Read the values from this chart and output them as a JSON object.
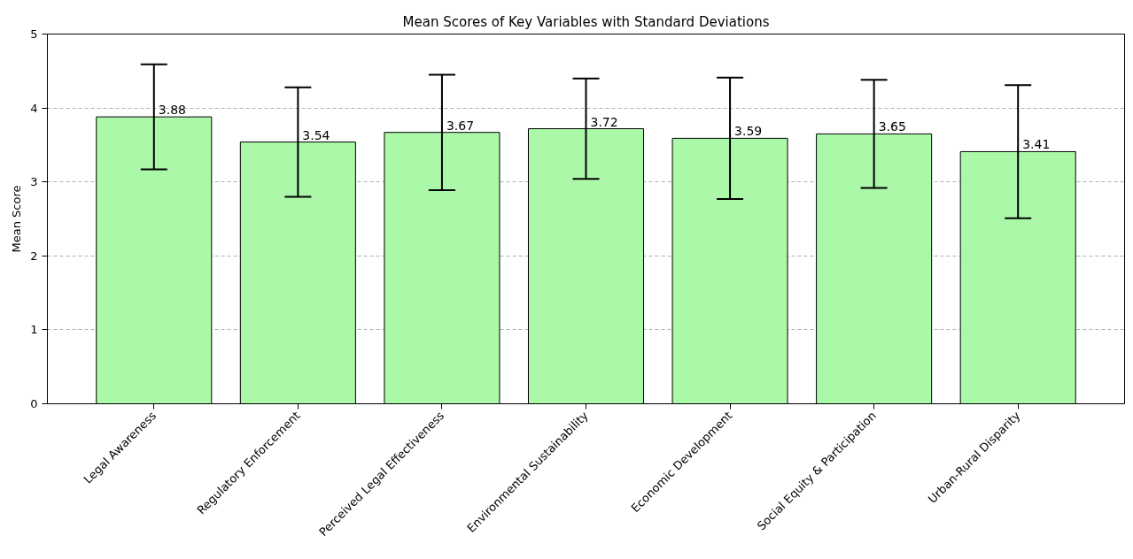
{
  "chart_data": {
    "type": "bar",
    "title": "Mean Scores of Key Variables with Standard Deviations",
    "ylabel": "Mean Score",
    "categories": [
      "Legal Awareness",
      "Regulatory Enforcement",
      "Perceived Legal Effectiveness",
      "Environmental Sustainability",
      "Economic Development",
      "Social Equity & Participation",
      "Urban-Rural Disparity"
    ],
    "values": [
      3.88,
      3.54,
      3.67,
      3.72,
      3.59,
      3.65,
      3.41
    ],
    "errors": [
      0.71,
      0.74,
      0.78,
      0.68,
      0.82,
      0.73,
      0.9
    ],
    "color": "#abf8a8",
    "ylim": [
      0,
      5
    ],
    "yticks": [
      0,
      1,
      2,
      3,
      4,
      5
    ],
    "grid": "y",
    "data_labels": true
  }
}
